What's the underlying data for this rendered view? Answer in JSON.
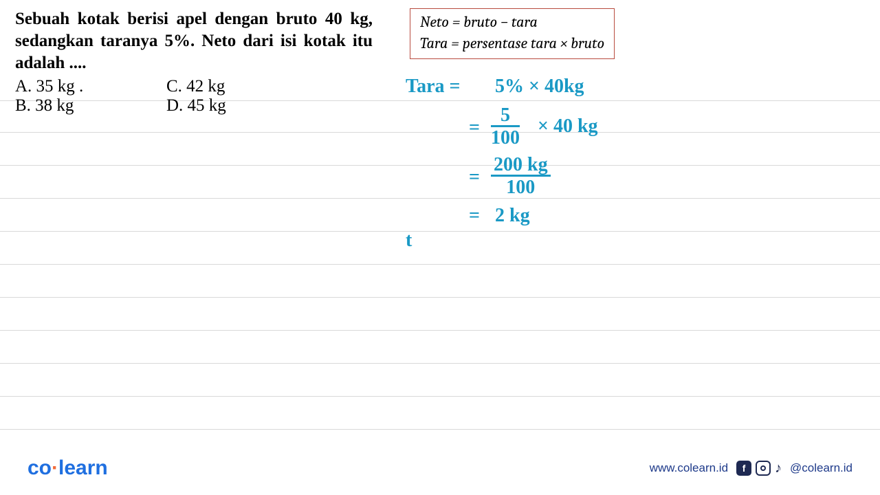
{
  "ruled_lines": {
    "positions": [
      146,
      192,
      240,
      288,
      336,
      384,
      432,
      480,
      528,
      576,
      624
    ],
    "color": "#d8d8d8"
  },
  "question": {
    "text": "Sebuah kotak berisi apel dengan bruto 40 kg, sedangkan taranya 5%. Neto dari isi kotak itu adalah ...."
  },
  "options": {
    "a": "A.   35 kg .",
    "b": "B.   38 kg",
    "c": "C.   42 kg",
    "d": "D.   45 kg"
  },
  "formula": {
    "line1": "Neto = bruto − tara",
    "line2": "Tara = persentase tara × bruto"
  },
  "handwriting": {
    "color": "#1a99c5",
    "l1_left": "Tara =",
    "l1_right": "5% × 40kg",
    "l2_eq": "=",
    "l2_num": "5",
    "l2_den": "100",
    "l2_right": "× 40 kg",
    "l3_eq": "=",
    "l3_num": "200 kg",
    "l3_den": "100",
    "l4_eq": "=",
    "l4_right": "2 kg",
    "stray": "t"
  },
  "footer": {
    "logo_co": "co",
    "logo_dot": "·",
    "logo_learn": "learn",
    "url": "www.colearn.id",
    "handle": "@colearn.id"
  }
}
